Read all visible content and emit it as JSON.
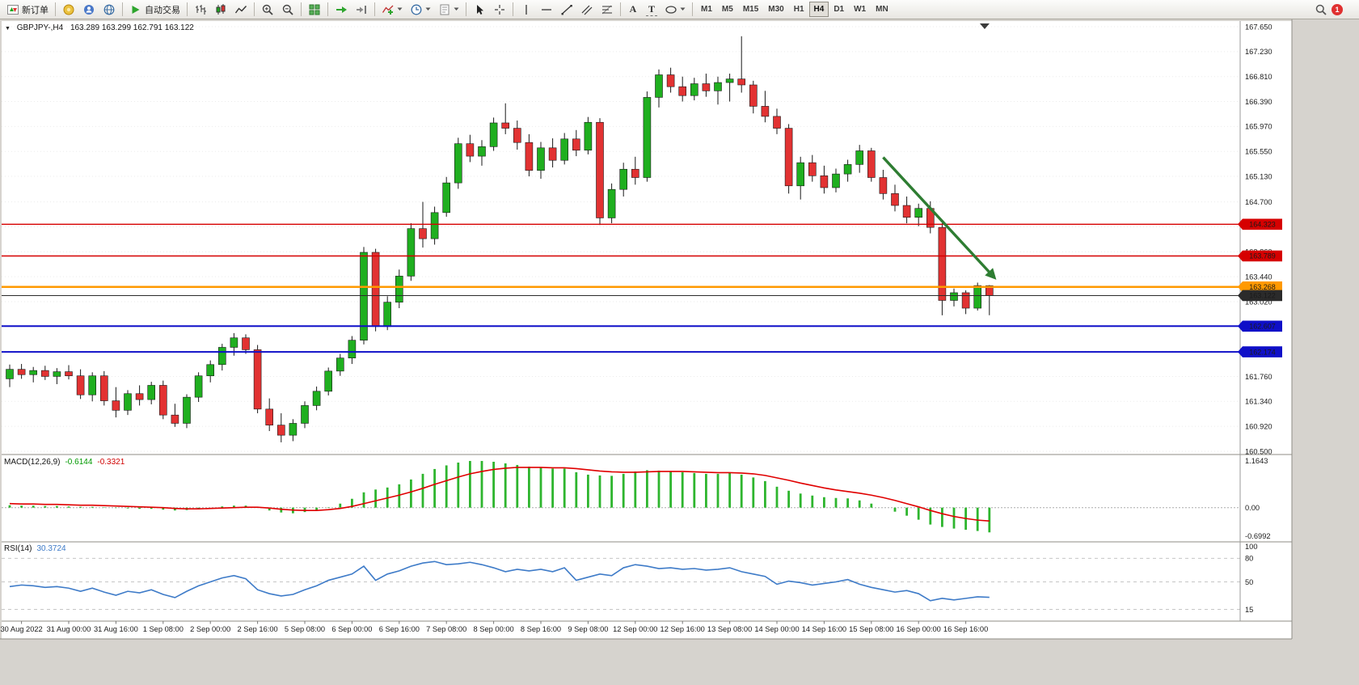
{
  "toolbar": {
    "new_order_label": "新订单",
    "auto_trading_label": "自动交易",
    "timeframes": [
      "M1",
      "M5",
      "M15",
      "M30",
      "H1",
      "H4",
      "D1",
      "W1",
      "MN"
    ],
    "active_timeframe": "H4",
    "notification_count": "1"
  },
  "icons": {
    "text_tool": "A",
    "label_tool": "T"
  },
  "chart": {
    "window_menu_glyph": "▼",
    "symbol_title": "GBPJPY-,H4",
    "ohlc_text": "163.289 163.299 162.791 163.122"
  },
  "indicators": {
    "macd": {
      "name": "MACD(12,26,9)",
      "main": "-0.6144",
      "signal": "-0.3321"
    },
    "rsi": {
      "name": "RSI(14)",
      "value": "30.3724"
    }
  },
  "chart_data": [
    {
      "type": "candlestick",
      "symbol": "GBPJPY-",
      "timeframe": "H4",
      "ylim": [
        160.445,
        167.746
      ],
      "y_axis_labels": [
        "167.650",
        "167.230",
        "166.810",
        "166.390",
        "165.970",
        "165.550",
        "165.130",
        "164.700",
        "164.280",
        "163.860",
        "163.440",
        "163.020",
        "162.600",
        "162.180",
        "161.760",
        "161.340",
        "160.920",
        "160.500"
      ],
      "x_labels": [
        "30 Aug 2022",
        "31 Aug 00:00",
        "31 Aug 16:00",
        "1 Sep 08:00",
        "2 Sep 00:00",
        "2 Sep 16:00",
        "5 Sep 08:00",
        "6 Sep 00:00",
        "6 Sep 16:00",
        "7 Sep 08:00",
        "8 Sep 00:00",
        "8 Sep 16:00",
        "9 Sep 08:00",
        "12 Sep 00:00",
        "12 Sep 16:00",
        "13 Sep 08:00",
        "14 Sep 00:00",
        "14 Sep 16:00",
        "15 Sep 08:00",
        "16 Sep 00:00",
        "16 Sep 16:00"
      ],
      "candles_per_label": 4,
      "first_label_index": 1,
      "up_color": "#1FAF1F",
      "down_color": "#E23232",
      "outline_color": "#1A1A1A",
      "grid_color": "#EBEBEB",
      "candles": [
        [
          161.72,
          161.96,
          161.58,
          161.88
        ],
        [
          161.88,
          161.97,
          161.72,
          161.79
        ],
        [
          161.79,
          161.92,
          161.66,
          161.86
        ],
        [
          161.86,
          161.94,
          161.7,
          161.76
        ],
        [
          161.76,
          161.9,
          161.63,
          161.84
        ],
        [
          161.84,
          161.95,
          161.71,
          161.77
        ],
        [
          161.77,
          161.88,
          161.38,
          161.45
        ],
        [
          161.45,
          161.83,
          161.34,
          161.77
        ],
        [
          161.77,
          161.85,
          161.27,
          161.35
        ],
        [
          161.35,
          161.58,
          161.07,
          161.19
        ],
        [
          161.19,
          161.53,
          161.11,
          161.47
        ],
        [
          161.47,
          161.61,
          161.27,
          161.37
        ],
        [
          161.37,
          161.67,
          161.29,
          161.61
        ],
        [
          161.61,
          161.69,
          161.04,
          161.11
        ],
        [
          161.11,
          161.3,
          160.91,
          160.97
        ],
        [
          160.97,
          161.46,
          160.89,
          161.41
        ],
        [
          161.41,
          161.83,
          161.33,
          161.77
        ],
        [
          161.77,
          162.03,
          161.66,
          161.96
        ],
        [
          161.96,
          162.31,
          161.86,
          162.25
        ],
        [
          162.25,
          162.49,
          162.11,
          162.41
        ],
        [
          162.41,
          162.47,
          162.14,
          162.21
        ],
        [
          162.21,
          162.29,
          161.14,
          161.21
        ],
        [
          161.21,
          161.39,
          160.84,
          160.94
        ],
        [
          160.94,
          161.14,
          160.65,
          160.77
        ],
        [
          160.77,
          161.04,
          160.67,
          160.97
        ],
        [
          160.97,
          161.34,
          160.89,
          161.27
        ],
        [
          161.27,
          161.59,
          161.19,
          161.51
        ],
        [
          161.51,
          161.91,
          161.44,
          161.85
        ],
        [
          161.85,
          162.14,
          161.77,
          162.07
        ],
        [
          162.07,
          162.44,
          161.97,
          162.37
        ],
        [
          162.37,
          163.94,
          162.3,
          163.85
        ],
        [
          163.85,
          163.91,
          162.52,
          162.6
        ],
        [
          162.6,
          163.11,
          162.54,
          163.01
        ],
        [
          163.01,
          163.56,
          162.91,
          163.45
        ],
        [
          163.45,
          164.34,
          163.37,
          164.25
        ],
        [
          164.25,
          164.7,
          163.93,
          164.08
        ],
        [
          164.08,
          164.62,
          163.98,
          164.52
        ],
        [
          164.52,
          165.12,
          164.45,
          165.02
        ],
        [
          165.02,
          165.78,
          164.92,
          165.68
        ],
        [
          165.68,
          165.83,
          165.37,
          165.47
        ],
        [
          165.47,
          165.74,
          165.31,
          165.63
        ],
        [
          165.63,
          166.12,
          165.56,
          166.03
        ],
        [
          166.03,
          166.36,
          165.84,
          165.94
        ],
        [
          165.94,
          166.07,
          165.58,
          165.7
        ],
        [
          165.7,
          165.84,
          165.13,
          165.23
        ],
        [
          165.23,
          165.71,
          165.09,
          165.61
        ],
        [
          165.61,
          165.77,
          165.28,
          165.4
        ],
        [
          165.4,
          165.86,
          165.33,
          165.76
        ],
        [
          165.76,
          165.91,
          165.47,
          165.57
        ],
        [
          165.57,
          166.13,
          165.5,
          166.04
        ],
        [
          166.04,
          166.11,
          164.31,
          164.43
        ],
        [
          164.43,
          165.01,
          164.34,
          164.91
        ],
        [
          164.91,
          165.36,
          164.79,
          165.25
        ],
        [
          165.25,
          165.46,
          164.99,
          165.11
        ],
        [
          165.11,
          166.56,
          165.04,
          166.46
        ],
        [
          166.46,
          166.93,
          166.29,
          166.84
        ],
        [
          166.84,
          166.96,
          166.54,
          166.64
        ],
        [
          166.64,
          166.81,
          166.39,
          166.49
        ],
        [
          166.49,
          166.79,
          166.41,
          166.69
        ],
        [
          166.69,
          166.86,
          166.47,
          166.57
        ],
        [
          166.57,
          166.81,
          166.34,
          166.71
        ],
        [
          166.71,
          166.86,
          166.39,
          166.77
        ],
        [
          166.77,
          167.49,
          166.54,
          166.67
        ],
        [
          166.67,
          166.74,
          166.19,
          166.31
        ],
        [
          166.31,
          166.57,
          166.04,
          166.14
        ],
        [
          166.14,
          166.27,
          165.84,
          165.94
        ],
        [
          165.94,
          166.01,
          164.84,
          164.97
        ],
        [
          164.97,
          165.46,
          164.74,
          165.36
        ],
        [
          165.36,
          165.49,
          165.04,
          165.14
        ],
        [
          165.14,
          165.31,
          164.84,
          164.94
        ],
        [
          164.94,
          165.26,
          164.86,
          165.17
        ],
        [
          165.17,
          165.41,
          165.04,
          165.33
        ],
        [
          165.33,
          165.66,
          165.19,
          165.56
        ],
        [
          165.56,
          165.61,
          165.04,
          165.11
        ],
        [
          165.11,
          165.24,
          164.74,
          164.84
        ],
        [
          164.84,
          164.99,
          164.54,
          164.64
        ],
        [
          164.64,
          164.79,
          164.34,
          164.44
        ],
        [
          164.44,
          164.67,
          164.29,
          164.59
        ],
        [
          164.59,
          164.71,
          164.17,
          164.27
        ],
        [
          164.27,
          164.34,
          162.79,
          163.04
        ],
        [
          163.04,
          163.24,
          162.94,
          163.17
        ],
        [
          163.17,
          163.21,
          162.81,
          162.91
        ],
        [
          162.91,
          163.34,
          162.87,
          163.29
        ],
        [
          163.289,
          163.299,
          162.791,
          163.122
        ]
      ],
      "hlines": [
        {
          "price": 164.323,
          "label": "164.323",
          "color": "#D60000",
          "width": 1.4
        },
        {
          "price": 163.789,
          "label": "163.789",
          "color": "#D60000",
          "width": 1.4
        },
        {
          "price": 163.268,
          "label": "163.268",
          "color": "#FF9900",
          "width": 2.4
        },
        {
          "price": 163.122,
          "label": "163.122",
          "color": "#2B2B2B",
          "width": 1,
          "role": "current-price"
        },
        {
          "price": 162.607,
          "label": "162.607",
          "color": "#0F0FC8",
          "width": 2
        },
        {
          "price": 162.174,
          "label": "162.174",
          "color": "#0F0FC8",
          "width": 2
        }
      ],
      "arrow": {
        "from_index": 74,
        "from_price": 165.45,
        "to_index": 83.4,
        "to_price": 163.43,
        "color": "#2E7D32"
      },
      "shift_marker_index": 82.6
    },
    {
      "type": "bar",
      "name": "MACD(12,26,9)",
      "ylim": [
        -0.85,
        1.3
      ],
      "y_axis_labels": [
        {
          "text": "1.1643",
          "value": 1.1643
        },
        {
          "text": "0.00",
          "value": 0
        },
        {
          "text": "-0.6992",
          "value": -0.6992
        }
      ],
      "bar_color": "#2EB52E",
      "signal_color": "#E00000",
      "values": [
        0.06,
        0.05,
        0.05,
        0.04,
        0.04,
        0.03,
        0.02,
        0.02,
        0.01,
        -0.01,
        -0.02,
        -0.03,
        -0.03,
        -0.05,
        -0.07,
        -0.06,
        -0.03,
        0.0,
        0.03,
        0.05,
        0.05,
        0.0,
        -0.07,
        -0.12,
        -0.14,
        -0.11,
        -0.06,
        0.01,
        0.1,
        0.22,
        0.38,
        0.45,
        0.5,
        0.58,
        0.7,
        0.84,
        0.96,
        1.05,
        1.12,
        1.16,
        1.16,
        1.14,
        1.1,
        1.06,
        1.02,
        0.99,
        0.97,
        0.97,
        0.88,
        0.82,
        0.8,
        0.79,
        0.84,
        0.9,
        0.93,
        0.92,
        0.9,
        0.88,
        0.86,
        0.84,
        0.84,
        0.86,
        0.82,
        0.75,
        0.66,
        0.52,
        0.42,
        0.35,
        0.3,
        0.26,
        0.24,
        0.23,
        0.18,
        0.1,
        0.0,
        -0.1,
        -0.2,
        -0.3,
        -0.42,
        -0.48,
        -0.52,
        -0.55,
        -0.58,
        -0.6144
      ],
      "signal": [
        0.1,
        0.09,
        0.09,
        0.08,
        0.08,
        0.07,
        0.06,
        0.06,
        0.05,
        0.04,
        0.03,
        0.02,
        0.01,
        0.0,
        -0.02,
        -0.03,
        -0.03,
        -0.02,
        -0.01,
        0.0,
        0.01,
        0.01,
        -0.01,
        -0.04,
        -0.06,
        -0.07,
        -0.07,
        -0.05,
        -0.02,
        0.03,
        0.1,
        0.17,
        0.24,
        0.31,
        0.39,
        0.48,
        0.58,
        0.67,
        0.76,
        0.84,
        0.9,
        0.95,
        0.98,
        1.0,
        1.0,
        1.0,
        0.99,
        0.99,
        0.97,
        0.94,
        0.91,
        0.89,
        0.88,
        0.88,
        0.89,
        0.9,
        0.9,
        0.9,
        0.89,
        0.88,
        0.87,
        0.87,
        0.86,
        0.84,
        0.8,
        0.74,
        0.68,
        0.61,
        0.55,
        0.49,
        0.44,
        0.4,
        0.36,
        0.31,
        0.25,
        0.18,
        0.1,
        0.02,
        -0.07,
        -0.15,
        -0.22,
        -0.27,
        -0.31,
        -0.3321
      ]
    },
    {
      "type": "line",
      "name": "RSI(14)",
      "ylim": [
        0,
        100
      ],
      "levels": [
        80,
        50,
        15
      ],
      "y_axis_labels": [
        {
          "text": "100",
          "value": 100
        },
        {
          "text": "80",
          "value": 80
        },
        {
          "text": "50",
          "value": 50
        },
        {
          "text": "15",
          "value": 15
        }
      ],
      "line_color": "#3E7BC8",
      "values": [
        44,
        46,
        45,
        43,
        44,
        42,
        38,
        42,
        37,
        33,
        38,
        36,
        40,
        34,
        30,
        38,
        45,
        50,
        55,
        58,
        54,
        40,
        35,
        32,
        34,
        40,
        45,
        52,
        56,
        60,
        70,
        52,
        60,
        64,
        70,
        74,
        76,
        72,
        73,
        75,
        72,
        68,
        63,
        66,
        64,
        66,
        63,
        68,
        52,
        56,
        60,
        58,
        68,
        72,
        70,
        67,
        68,
        66,
        67,
        65,
        66,
        68,
        63,
        60,
        57,
        47,
        51,
        49,
        46,
        48,
        50,
        53,
        47,
        43,
        40,
        37,
        39,
        35,
        26,
        29,
        27,
        29,
        31,
        30.37
      ]
    }
  ]
}
